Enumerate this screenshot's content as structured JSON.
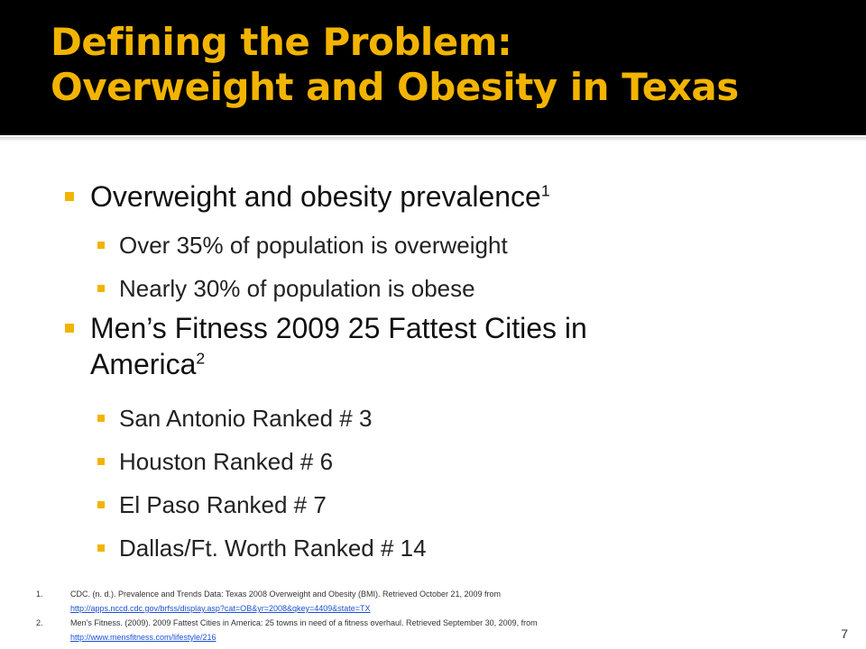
{
  "slide": {
    "title_line1": "Defining the Problem:",
    "title_line2": "Overweight and Obesity in Texas",
    "slide_number": "7",
    "accent_color": "#f2b400",
    "header_background": "#000000"
  },
  "bullets": [
    {
      "text": "Overweight and obesity prevalence",
      "sup": "1",
      "sub": [
        "Over 35% of population is overweight",
        "Nearly 30% of population is obese"
      ]
    },
    {
      "text_line1": "Men’s Fitness 2009 25 Fattest Cities in",
      "text_line2": "America",
      "sup": "2",
      "sub": [
        "San Antonio Ranked # 3",
        "Houston Ranked # 6",
        "El Paso Ranked # 7",
        "Dallas/Ft. Worth Ranked # 14"
      ]
    }
  ],
  "footnotes": [
    {
      "num": "1.",
      "text": "CDC. (n. d.). Prevalence and Trends Data: Texas 2008 Overweight and Obesity (BMI). Retrieved October 21, 2009 from",
      "link": "http://apps.nccd.cdc.gov/brfss/display.asp?cat=OB&yr=2008&qkey=4409&state=TX"
    },
    {
      "num": "2.",
      "text": "Men’s Fitness. (2009). 2009 Fattest Cities in America: 25 towns in need of a fitness overhaul. Retrieved September 30, 2009, from",
      "link": "http://www.mensfitness.com/lifestyle/216"
    }
  ]
}
